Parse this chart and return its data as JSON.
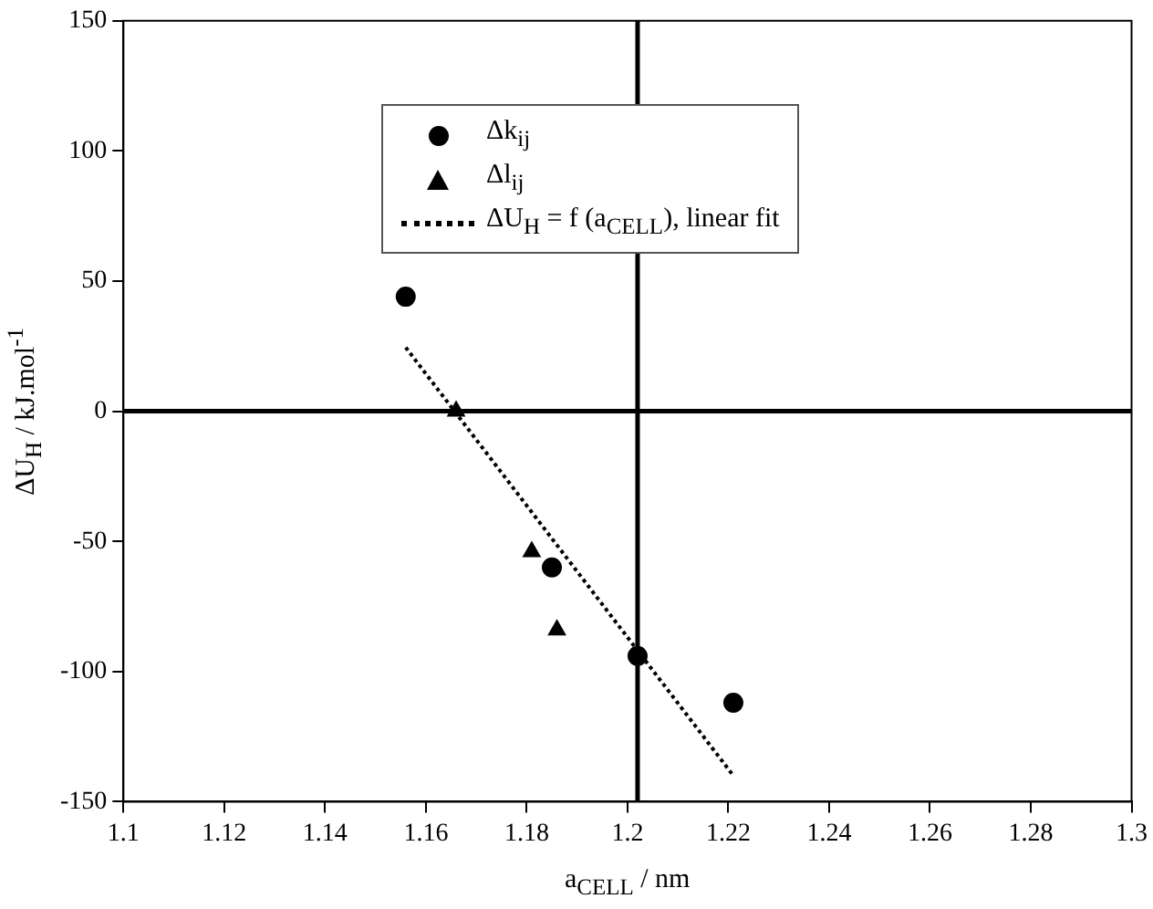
{
  "chart_data": {
    "type": "scatter",
    "xlabel": "a$_{CELL}$ / nm",
    "ylabel": "ΔU$_{H}$ / kJ.mol$^{-1}$",
    "xlim": [
      1.1,
      1.3
    ],
    "xticks": [
      1.1,
      1.12,
      1.14,
      1.16,
      1.18,
      1.2,
      1.22,
      1.24,
      1.26,
      1.28,
      1.3
    ],
    "ylim": [
      -150,
      150
    ],
    "yticks": [
      -150,
      -100,
      -50,
      0,
      50,
      100,
      150
    ],
    "grid": false,
    "legend": "top",
    "series": [
      {
        "name": "Δk$_{ij}$",
        "type": "scatter",
        "marker": "circle",
        "color": "#000000",
        "x": [
          1.156,
          1.185,
          1.202,
          1.221
        ],
        "values": [
          44,
          -60,
          -94,
          -112
        ]
      },
      {
        "name": "Δl$_{ij}$",
        "type": "scatter",
        "marker": "triangle",
        "color": "#000000",
        "x": [
          1.166,
          1.181,
          1.186
        ],
        "values": [
          0,
          -54,
          -84
        ]
      },
      {
        "name": "ΔU$_{H}$ = f (a$_{CELL}$), linear fit",
        "type": "line",
        "marker": "none",
        "line_style": "dotted",
        "color": "#000000",
        "x": [
          1.156,
          1.221
        ],
        "values": [
          24.5,
          -140
        ]
      }
    ],
    "ref_lines": [
      {
        "axis": "y",
        "value": 0,
        "color": "#000000",
        "line_style": "solid"
      },
      {
        "axis": "x",
        "value": 1.202,
        "color": "#000000",
        "line_style": "solid"
      }
    ]
  }
}
